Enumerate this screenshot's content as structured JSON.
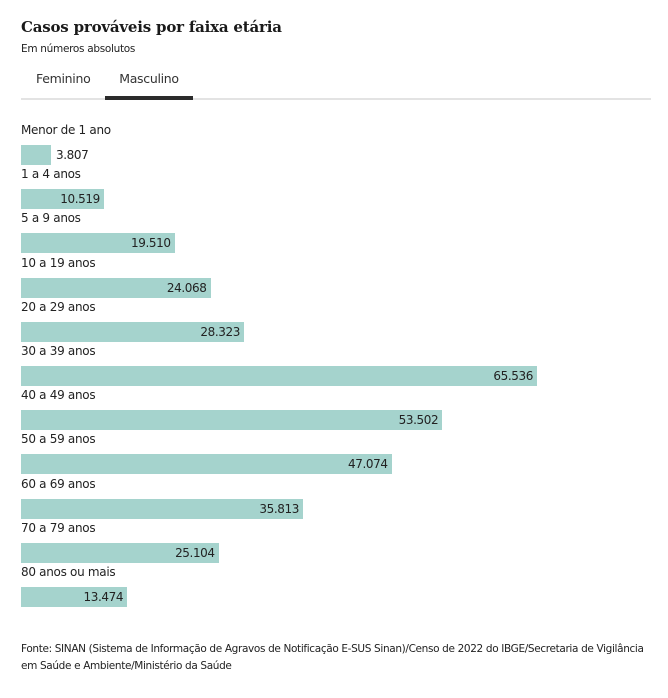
{
  "header": {
    "title": "Casos prováveis por faixa etária",
    "subtitle": "Em números absolutos"
  },
  "tabs": [
    {
      "label": "Feminino",
      "active": false
    },
    {
      "label": "Masculino",
      "active": true
    }
  ],
  "colors": {
    "bar": "#a5d3cd",
    "tab_underline": "#2b2b2b",
    "divider": "#e3e3e3"
  },
  "chart_data": {
    "type": "bar",
    "orientation": "horizontal",
    "title": "Casos prováveis por faixa etária",
    "subtitle": "Em números absolutos",
    "series_name": "Masculino",
    "categories": [
      "Menor de 1 ano",
      "1 a 4 anos",
      "5 a 9 anos",
      "10 a 19 anos",
      "20 a 29 anos",
      "30 a 39 anos",
      "40 a 49 anos",
      "50 a 59 anos",
      "60 a 69 anos",
      "70 a 79 anos",
      "80 anos ou mais"
    ],
    "values": [
      3807,
      10519,
      19510,
      24068,
      28323,
      65536,
      53502,
      47074,
      35813,
      25104,
      13474
    ],
    "value_labels": [
      "3.807",
      "10.519",
      "19.510",
      "24.068",
      "28.323",
      "65.536",
      "53.502",
      "47.074",
      "35.813",
      "25.104",
      "13.474"
    ],
    "xlabel": "",
    "ylabel": "",
    "xlim": [
      0,
      65536
    ],
    "grid": false,
    "legend": "none"
  },
  "footer": {
    "source": "Fonte: SINAN (Sistema de Informação de Agravos de Notificação E-SUS Sinan)/Censo de 2022 do IBGE/Secretaria de Vigilância em Saúde e Ambiente/Ministério da Saúde"
  }
}
